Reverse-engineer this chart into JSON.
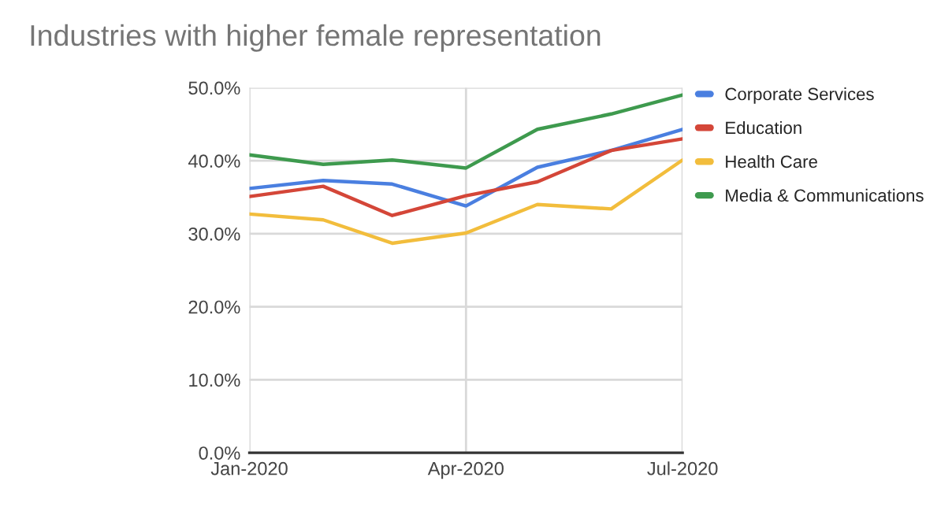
{
  "chart_data": {
    "type": "line",
    "title": "Industries with higher female representation",
    "x": [
      "2020-01",
      "2020-02",
      "2020-03",
      "2020-04",
      "2020-05",
      "2020-06",
      "2020-07"
    ],
    "series": [
      {
        "name": "Corporate Services",
        "color": "#4a7fe0",
        "values": [
          36.2,
          37.3,
          36.8,
          33.8,
          39.1,
          41.4,
          44.3
        ]
      },
      {
        "name": "Education",
        "color": "#d44638",
        "values": [
          35.1,
          36.5,
          32.5,
          35.2,
          37.1,
          41.4,
          43.0
        ]
      },
      {
        "name": "Health Care",
        "color": "#f2bd3c",
        "values": [
          32.7,
          31.9,
          28.7,
          30.1,
          34.0,
          33.4,
          40.1
        ]
      },
      {
        "name": "Media & Communications",
        "color": "#3e9a4e",
        "values": [
          40.8,
          39.5,
          40.1,
          39.0,
          44.3,
          46.4,
          49.0
        ]
      }
    ],
    "xlim": [
      "2020-01",
      "2020-07"
    ],
    "xticks": [
      {
        "value": "2020-01",
        "label": "Jan-2020"
      },
      {
        "value": "2020-04",
        "label": "Apr-2020"
      },
      {
        "value": "2020-07",
        "label": "Jul-2020"
      }
    ],
    "ylim": [
      0,
      50
    ],
    "yticks": [
      {
        "value": 0,
        "label": "0.0%"
      },
      {
        "value": 10,
        "label": "10.0%"
      },
      {
        "value": 20,
        "label": "20.0%"
      },
      {
        "value": 30,
        "label": "30.0%"
      },
      {
        "value": 40,
        "label": "40.0%"
      },
      {
        "value": 50,
        "label": "50.0%"
      }
    ],
    "grid": true,
    "legend": "right",
    "marker": "none",
    "line_style": "solid"
  }
}
